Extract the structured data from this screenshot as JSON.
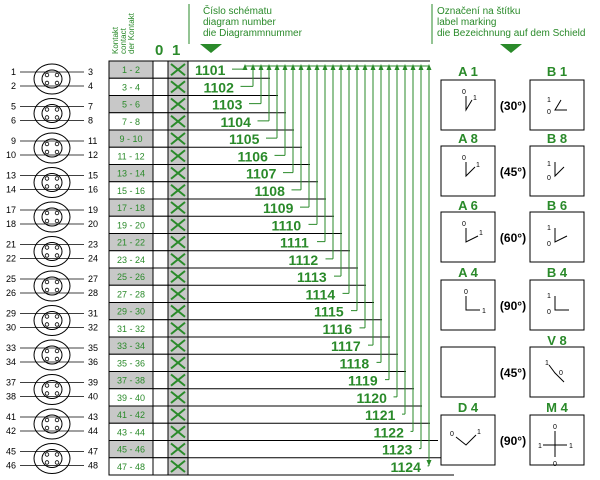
{
  "header": {
    "contact_labels": [
      "Kontakt",
      "contact",
      "der Kontakt"
    ],
    "state_off": "0",
    "state_on": "1",
    "diagram_number_labels": [
      "Číslo schématu",
      "diagram number",
      "die Diagrammnummer"
    ],
    "label_marking_labels": [
      "Označení na štítku",
      "label marking",
      "die Bezeichnung auf dem Schield"
    ]
  },
  "terminal_pairs": [
    {
      "left": [
        "1",
        "2"
      ],
      "right": [
        "3",
        "4"
      ]
    },
    {
      "left": [
        "5",
        "6"
      ],
      "right": [
        "7",
        "8"
      ]
    },
    {
      "left": [
        "9",
        "10"
      ],
      "right": [
        "11",
        "12"
      ]
    },
    {
      "left": [
        "13",
        "14"
      ],
      "right": [
        "15",
        "16"
      ]
    },
    {
      "left": [
        "17",
        "18"
      ],
      "right": [
        "19",
        "20"
      ]
    },
    {
      "left": [
        "21",
        "22"
      ],
      "right": [
        "23",
        "24"
      ]
    },
    {
      "left": [
        "25",
        "26"
      ],
      "right": [
        "27",
        "28"
      ]
    },
    {
      "left": [
        "29",
        "30"
      ],
      "right": [
        "31",
        "32"
      ]
    },
    {
      "left": [
        "33",
        "34"
      ],
      "right": [
        "35",
        "36"
      ]
    },
    {
      "left": [
        "37",
        "38"
      ],
      "right": [
        "39",
        "40"
      ]
    },
    {
      "left": [
        "41",
        "42"
      ],
      "right": [
        "43",
        "44"
      ]
    },
    {
      "left": [
        "45",
        "46"
      ],
      "right": [
        "47",
        "48"
      ]
    }
  ],
  "contacts": [
    {
      "contact": "1 - 2",
      "diagram": "1101"
    },
    {
      "contact": "3 - 4",
      "diagram": "1102"
    },
    {
      "contact": "5 - 6",
      "diagram": "1103"
    },
    {
      "contact": "7 - 8",
      "diagram": "1104"
    },
    {
      "contact": "9 - 10",
      "diagram": "1105"
    },
    {
      "contact": "11 - 12",
      "diagram": "1106"
    },
    {
      "contact": "13 - 14",
      "diagram": "1107"
    },
    {
      "contact": "15 - 16",
      "diagram": "1108"
    },
    {
      "contact": "17 - 18",
      "diagram": "1109"
    },
    {
      "contact": "19 - 20",
      "diagram": "1110"
    },
    {
      "contact": "21 - 22",
      "diagram": "1111"
    },
    {
      "contact": "23 - 24",
      "diagram": "1112"
    },
    {
      "contact": "25 - 26",
      "diagram": "1113"
    },
    {
      "contact": "27 - 28",
      "diagram": "1114"
    },
    {
      "contact": "29 - 30",
      "diagram": "1115"
    },
    {
      "contact": "31 - 32",
      "diagram": "1116"
    },
    {
      "contact": "33 - 34",
      "diagram": "1117"
    },
    {
      "contact": "35 - 36",
      "diagram": "1118"
    },
    {
      "contact": "37 - 38",
      "diagram": "1119"
    },
    {
      "contact": "39 - 40",
      "diagram": "1120"
    },
    {
      "contact": "41 - 42",
      "diagram": "1121"
    },
    {
      "contact": "43 - 44",
      "diagram": "1122"
    },
    {
      "contact": "45 - 46",
      "diagram": "1123"
    },
    {
      "contact": "47 - 48",
      "diagram": "1124"
    }
  ],
  "markings": [
    {
      "left": "A 1",
      "right": "B 1",
      "angle": "(30°)",
      "left_glyph": "a1",
      "right_glyph": "b1"
    },
    {
      "left": "A 8",
      "right": "B 8",
      "angle": "(45°)",
      "left_glyph": "a8",
      "right_glyph": "b8"
    },
    {
      "left": "A 6",
      "right": "B 6",
      "angle": "(60°)",
      "left_glyph": "a6",
      "right_glyph": "b6"
    },
    {
      "left": "A 4",
      "right": "B 4",
      "angle": "(90°)",
      "left_glyph": "a4",
      "right_glyph": "b4"
    },
    {
      "left": "",
      "right": "V 8",
      "angle": "(45°)",
      "left_glyph": "",
      "right_glyph": "v8"
    },
    {
      "left": "D 4",
      "right": "M 4",
      "angle": "(90°)",
      "left_glyph": "d4",
      "right_glyph": "m4"
    }
  ],
  "switch_position_labels": [
    "0",
    "1"
  ],
  "colors": {
    "green": "#2a8a2a",
    "shaded_cell": "#c8c8c8",
    "grid": "#000000"
  }
}
